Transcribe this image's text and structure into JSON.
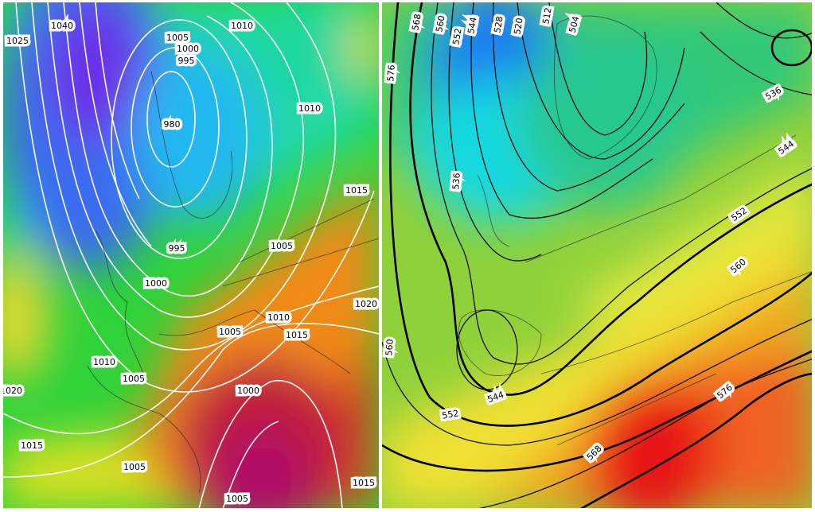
{
  "left_map": {
    "labels": [
      "1040",
      "1025",
      "1005",
      "1010",
      "1000",
      "995",
      "980",
      "1010",
      "1015",
      "1005",
      "995",
      "1000",
      "1020",
      "1010",
      "1015",
      "1005",
      "1010",
      "1005",
      "1020",
      "1000",
      "1015",
      "1005",
      "1015",
      "1005"
    ]
  },
  "right_map": {
    "labels": [
      "568",
      "560",
      "552",
      "544",
      "528",
      "520",
      "512",
      "504",
      "576",
      "536",
      "544",
      "536",
      "552",
      "560",
      "560",
      "544",
      "552",
      "576",
      "568"
    ]
  }
}
